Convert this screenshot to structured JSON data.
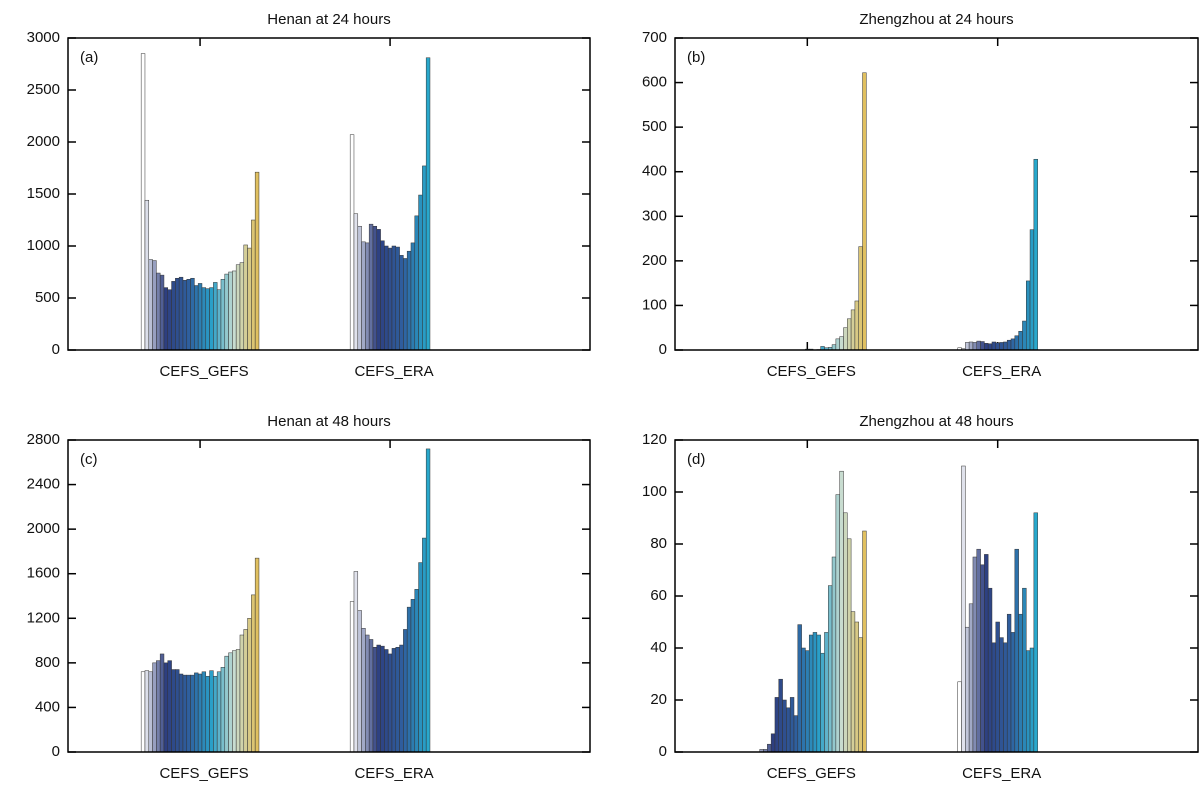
{
  "chart_data": [
    {
      "type": "bar",
      "title": "Henan at 24 hours",
      "panel_label": "(a)",
      "ylim": [
        0,
        3000
      ],
      "yticks": [
        0,
        500,
        1000,
        1500,
        2000,
        2500,
        3000
      ],
      "groups": [
        {
          "name": "CEFS_GEFS",
          "colors": [
            "#ffffff",
            "#2e3f80",
            "#2f5f9e",
            "#2a9fc8",
            "#c8dcd0",
            "#e0c060"
          ],
          "values": [
            2850,
            1440,
            870,
            860,
            740,
            720,
            600,
            580,
            660,
            690,
            700,
            670,
            680,
            690,
            620,
            640,
            600,
            590,
            600,
            650,
            580,
            680,
            730,
            750,
            760,
            820,
            840,
            1010,
            980,
            1250,
            1710
          ]
        },
        {
          "name": "CEFS_ERA",
          "colors": [
            "#ffffff",
            "#2e3f80",
            "#2f5f9e",
            "#28a8cc"
          ],
          "values": [
            2070,
            1310,
            1190,
            1040,
            1030,
            1210,
            1190,
            1160,
            1050,
            1000,
            980,
            1000,
            990,
            910,
            880,
            950,
            1030,
            1290,
            1490,
            1770,
            2810
          ]
        }
      ]
    },
    {
      "type": "bar",
      "title": "Zhengzhou at 24 hours",
      "panel_label": "(b)",
      "ylim": [
        0,
        700
      ],
      "yticks": [
        0,
        100,
        200,
        300,
        400,
        500,
        600,
        700
      ],
      "groups": [
        {
          "name": "CEFS_GEFS",
          "colors": [
            "#ffffff",
            "#2e3f80",
            "#2f5f9e",
            "#2a9fc8",
            "#c8dcd0",
            "#e0c060"
          ],
          "values": [
            0,
            0,
            0,
            0,
            0,
            0,
            0,
            0,
            0,
            0,
            0,
            0,
            0,
            0,
            0,
            2,
            2,
            0,
            1,
            8,
            5,
            6,
            12,
            25,
            30,
            50,
            70,
            90,
            110,
            232,
            622
          ]
        },
        {
          "name": "CEFS_ERA",
          "colors": [
            "#ffffff",
            "#2e3f80",
            "#2f5f9e",
            "#28a8cc"
          ],
          "values": [
            5,
            3,
            17,
            18,
            17,
            20,
            19,
            15,
            14,
            18,
            16,
            17,
            18,
            22,
            25,
            32,
            42,
            65,
            155,
            270,
            428
          ]
        }
      ]
    },
    {
      "type": "bar",
      "title": "Henan at 48 hours",
      "panel_label": "(c)",
      "ylim": [
        0,
        2800
      ],
      "yticks": [
        0,
        400,
        800,
        1200,
        1600,
        2000,
        2400,
        2800
      ],
      "groups": [
        {
          "name": "CEFS_GEFS",
          "colors": [
            "#ffffff",
            "#2e3f80",
            "#2f5f9e",
            "#2a9fc8",
            "#c8dcd0",
            "#e0c060"
          ],
          "values": [
            720,
            730,
            720,
            800,
            820,
            880,
            800,
            820,
            740,
            740,
            700,
            690,
            690,
            690,
            710,
            700,
            720,
            680,
            730,
            680,
            720,
            760,
            860,
            890,
            910,
            920,
            1050,
            1100,
            1200,
            1410,
            1740
          ]
        },
        {
          "name": "CEFS_ERA",
          "colors": [
            "#ffffff",
            "#2e3f80",
            "#2f5f9e",
            "#28a8cc"
          ],
          "values": [
            1350,
            1620,
            1270,
            1110,
            1050,
            1010,
            940,
            960,
            950,
            920,
            880,
            930,
            940,
            960,
            1100,
            1300,
            1370,
            1460,
            1700,
            1920,
            2720
          ]
        }
      ]
    },
    {
      "type": "bar",
      "title": "Zhengzhou at 48 hours",
      "panel_label": "(d)",
      "ylim": [
        0,
        120
      ],
      "yticks": [
        0,
        20,
        40,
        60,
        80,
        100,
        120
      ],
      "groups": [
        {
          "name": "CEFS_GEFS",
          "colors": [
            "#ffffff",
            "#2e3f80",
            "#2f5f9e",
            "#2a9fc8",
            "#c8dcd0",
            "#e0c060"
          ],
          "values": [
            0,
            0,
            0,
            1,
            1,
            3,
            7,
            21,
            28,
            20,
            17,
            21,
            14,
            49,
            40,
            39,
            45,
            46,
            45,
            38,
            46,
            64,
            75,
            99,
            108,
            92,
            82,
            54,
            50,
            44,
            85
          ]
        },
        {
          "name": "CEFS_ERA",
          "colors": [
            "#ffffff",
            "#2e3f80",
            "#2f5f9e",
            "#28a8cc"
          ],
          "values": [
            27,
            110,
            48,
            57,
            75,
            78,
            72,
            76,
            63,
            42,
            50,
            44,
            42,
            53,
            46,
            78,
            53,
            63,
            39,
            40,
            92
          ]
        }
      ]
    }
  ]
}
